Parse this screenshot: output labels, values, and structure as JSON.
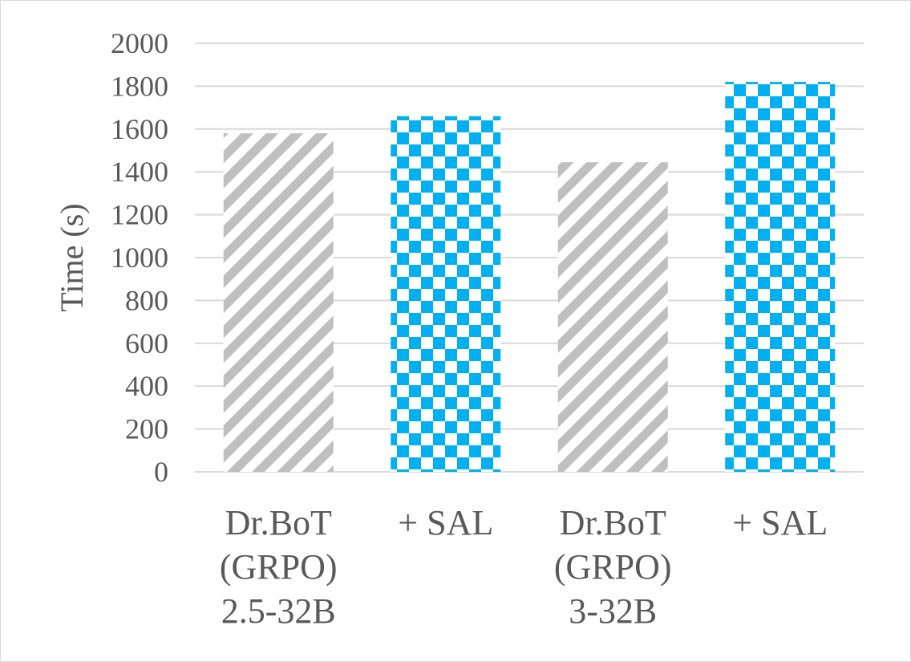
{
  "chart_data": {
    "type": "bar",
    "title": "",
    "xlabel": "",
    "ylabel": "Time (s)",
    "ylim": [
      0,
      2000
    ],
    "yticks": [
      0,
      200,
      400,
      600,
      800,
      1000,
      1200,
      1400,
      1600,
      1800,
      2000
    ],
    "grid": true,
    "categories": [
      [
        "Dr.BoT",
        "(GRPO)",
        "2.5-32B"
      ],
      [
        "+ SAL"
      ],
      [
        "Dr.BoT",
        "(GRPO)",
        "3-32B"
      ],
      [
        "+ SAL"
      ]
    ],
    "values": [
      1580,
      1660,
      1445,
      1820
    ],
    "bar_styles": [
      "gray-diagonal-stripes",
      "blue-checkerboard",
      "gray-diagonal-stripes",
      "blue-checkerboard"
    ],
    "colors": {
      "gray": "#bfbfbf",
      "blue": "#00b0f0",
      "grid": "#d9d9d9",
      "text": "#595959"
    }
  }
}
